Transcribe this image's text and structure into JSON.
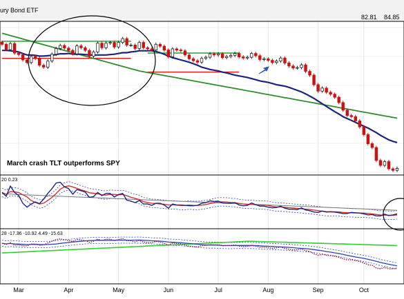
{
  "chart_data": {
    "type": "candlestick",
    "title": "ury Bond ETF",
    "header_values": [
      "82.81",
      "84.85"
    ],
    "annotation": "March crash TLT outperforms SPY",
    "indicator1_label": "20 0.23",
    "indicator2_label": "28 -17.36 -10.92 4.49 -15.63",
    "x_tick_labels": [
      "Mar",
      "Apr",
      "May",
      "Jun",
      "Jul",
      "Aug",
      "Sep",
      "Oct"
    ],
    "y_range": [
      114,
      152
    ],
    "close": [
      147.6,
      146.2,
      147.8,
      145.3,
      144.9,
      143.5,
      142.8,
      144.4,
      143.9,
      142.1,
      141.6,
      143.2,
      145.0,
      146.5,
      147.3,
      146.6,
      146.0,
      145.1,
      147.2,
      146.7,
      146.0,
      144.5,
      145.6,
      147.9,
      146.7,
      147.9,
      148.1,
      146.9,
      148.1,
      149.1,
      147.4,
      147.4,
      146.5,
      148.1,
      146.7,
      146.4,
      146.1,
      147.6,
      147.1,
      146.1,
      144.3,
      146.4,
      146.1,
      145.9,
      144.8,
      143.8,
      143.3,
      142.9,
      143.9,
      144.2,
      145.1,
      144.8,
      145.1,
      144.1,
      144.4,
      144.7,
      145.2,
      144.3,
      144.0,
      144.2,
      145.2,
      144.6,
      143.6,
      143.8,
      143.4,
      142.8,
      143.2,
      144.0,
      142.7,
      141.9,
      141.4,
      141.5,
      142.2,
      140.5,
      139.5,
      137.0,
      135.3,
      136.1,
      135.0,
      134.5,
      133.7,
      132.3,
      130.3,
      128.9,
      128.6,
      127.5,
      125.9,
      123.9,
      121.5,
      120.5,
      117.1,
      115.8,
      116.8,
      114.9,
      114.5,
      115.0
    ],
    "ma_short": [
      146.0,
      146.0,
      145.9,
      145.8,
      145.6,
      145.2,
      144.8,
      144.8,
      144.7,
      144.5,
      144.5,
      144.6,
      144.7,
      144.9,
      145.1,
      145.1,
      145.2,
      145.0,
      145.0,
      145.0,
      144.9,
      144.8,
      144.8,
      144.8,
      144.8,
      144.8,
      144.9,
      145.0,
      145.2,
      145.4,
      145.4,
      145.6,
      145.7,
      145.9,
      145.9,
      145.9,
      145.9,
      145.7,
      145.4,
      145.0,
      144.5,
      144.1,
      143.8,
      143.5,
      143.2,
      142.9,
      142.5,
      142.1,
      141.6,
      141.3,
      141.0,
      140.8,
      140.6,
      140.3,
      140.1,
      139.8,
      139.5,
      139.3,
      139.1,
      138.9,
      138.6,
      138.3,
      138.0,
      137.8,
      137.6,
      137.3,
      137.0,
      136.8,
      136.6,
      136.3,
      135.9,
      135.5,
      135.1,
      134.6,
      134.0,
      133.4,
      132.7,
      132.0,
      131.3,
      130.6,
      129.9,
      129.3,
      128.6,
      128.1,
      127.6,
      127.1,
      126.6,
      126.1,
      125.6,
      125.0,
      124.4,
      123.7,
      123.1,
      122.5,
      122.1,
      121.8
    ],
    "ma_long": [
      150.5,
      150.2,
      149.9,
      149.6,
      149.3,
      149.0,
      148.7,
      148.4,
      148.1,
      147.8,
      147.5,
      147.2,
      146.9,
      146.6,
      146.3,
      146.0,
      145.7,
      145.4,
      145.1,
      144.8,
      144.5,
      144.2,
      143.9,
      143.6,
      143.3,
      143.0,
      142.7,
      142.4,
      142.1,
      141.8,
      141.5,
      141.2,
      140.9,
      140.6,
      140.4,
      140.2,
      140.0,
      139.8,
      139.6,
      139.4,
      139.2,
      139.0,
      138.8,
      138.6,
      138.4,
      138.2,
      138.0,
      137.8,
      137.6,
      137.4,
      137.2,
      137.0,
      136.8,
      136.6,
      136.4,
      136.2,
      136.0,
      135.8,
      135.6,
      135.4,
      135.2,
      135.0,
      134.8,
      134.6,
      134.4,
      134.2,
      134.0,
      133.8,
      133.6,
      133.4,
      133.2,
      133.0,
      132.8,
      132.6,
      132.4,
      132.2,
      132.0,
      131.8,
      131.6,
      131.4,
      131.2,
      131.0,
      130.8,
      130.6,
      130.4,
      130.2,
      130.0,
      129.8,
      129.6,
      129.4,
      129.2,
      129.0,
      128.8,
      128.6,
      128.4,
      128.2
    ],
    "support_resistance": [
      {
        "from_idx": 0,
        "to_idx": 31,
        "value": 148.4,
        "color": "#2e9e2e"
      },
      {
        "from_idx": 35,
        "to_idx": 57,
        "value": 145.3,
        "color": "#2e9e2e"
      },
      {
        "from_idx": 0,
        "to_idx": 31,
        "value": 143.9,
        "color": "#e02020"
      },
      {
        "from_idx": 35,
        "to_idx": 57,
        "value": 140.3,
        "color": "#e02020"
      }
    ],
    "indicator1": [
      0.66,
      0.55,
      0.84,
      0.66,
      0.57,
      0.35,
      0.24,
      0.33,
      0.39,
      0.34,
      0.47,
      0.63,
      0.77,
      0.93,
      0.95,
      0.82,
      0.77,
      0.61,
      0.74,
      0.71,
      0.67,
      0.52,
      0.54,
      0.66,
      0.57,
      0.63,
      0.63,
      0.53,
      0.6,
      0.63,
      0.44,
      0.41,
      0.37,
      0.43,
      0.33,
      0.33,
      0.29,
      0.35,
      0.35,
      0.3,
      0.21,
      0.33,
      0.3,
      0.3,
      0.29,
      0.28,
      0.28,
      0.29,
      0.35,
      0.37,
      0.42,
      0.4,
      0.41,
      0.36,
      0.35,
      0.35,
      0.37,
      0.3,
      0.28,
      0.29,
      0.36,
      0.31,
      0.27,
      0.27,
      0.24,
      0.22,
      0.23,
      0.27,
      0.21,
      0.18,
      0.18,
      0.17,
      0.22,
      0.16,
      0.14,
      0.1,
      0.09,
      0.13,
      0.1,
      0.11,
      0.1,
      0.08,
      0.06,
      0.06,
      0.09,
      0.08,
      0.07,
      0.05,
      0.02,
      0.03,
      -0.01,
      -0.01,
      0.04,
      0.0,
      0.02,
      0.05
    ],
    "indicator2": [
      -9.1,
      -10.1,
      -8.6,
      -10.7,
      -10.4,
      -11.2,
      -11.2,
      -9.7,
      -9.7,
      -10.7,
      -10.5,
      -8.9,
      -7.3,
      -6.1,
      -5.6,
      -6.2,
      -6.8,
      -7.6,
      -6.0,
      -6.4,
      -7.0,
      -8.4,
      -7.5,
      -5.7,
      -6.8,
      -5.9,
      -5.7,
      -7.0,
      -6.1,
      -5.3,
      -7.0,
      -7.1,
      -8.0,
      -6.7,
      -8.1,
      -8.4,
      -8.8,
      -7.6,
      -8.1,
      -9.1,
      -10.6,
      -8.9,
      -9.3,
      -9.6,
      -10.6,
      -11.4,
      -11.8,
      -12.1,
      -11.2,
      -10.9,
      -10.2,
      -10.5,
      -10.3,
      -11.2,
      -11.0,
      -10.8,
      -10.5,
      -11.4,
      -11.8,
      -11.7,
      -10.9,
      -11.5,
      -12.4,
      -12.3,
      -12.7,
      -13.3,
      -12.9,
      -12.2,
      -13.4,
      -14.0,
      -14.5,
      -14.4,
      -13.8,
      -15.1,
      -15.8,
      -17.7,
      -18.9,
      -18.1,
      -18.9,
      -19.2,
      -19.7,
      -20.6,
      -21.9,
      -22.6,
      -22.6,
      -23.1,
      -24.0,
      -25.2,
      -26.6,
      -27.1,
      -29.3,
      -29.9,
      -28.9,
      -30.0,
      -30.0,
      -29.4
    ]
  }
}
